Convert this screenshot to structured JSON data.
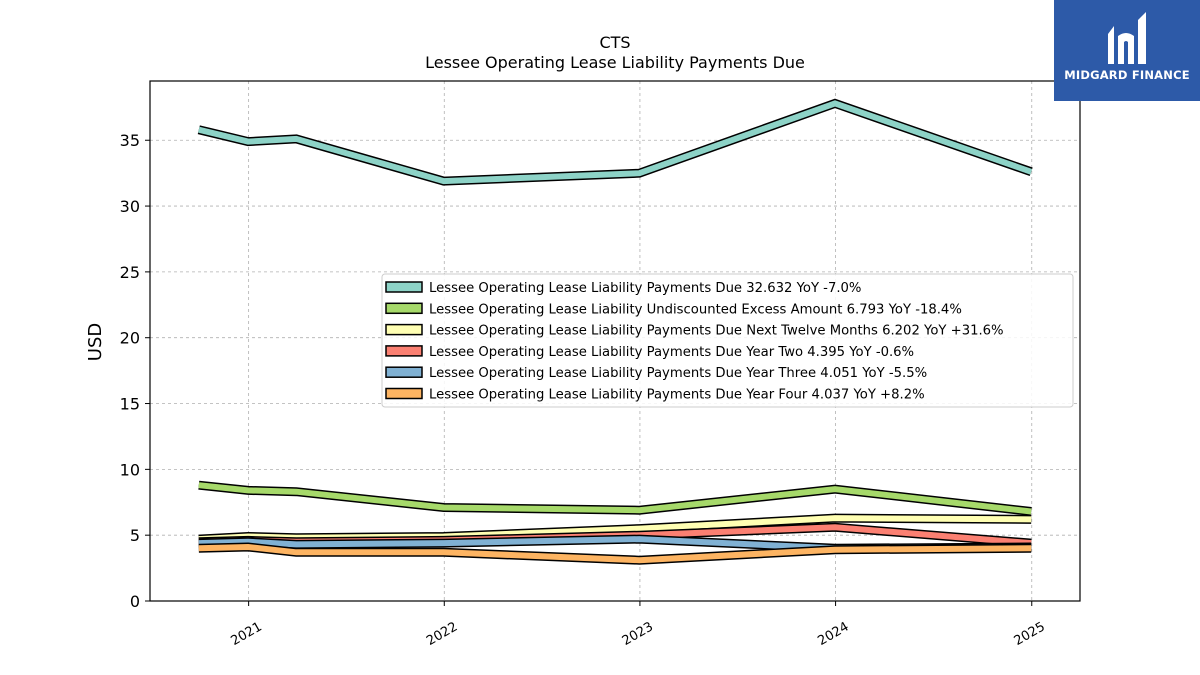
{
  "chart_data": {
    "type": "line",
    "title": "CTS",
    "subtitle": "Lessee Operating Lease Liability Payments Due",
    "ylabel": "USD",
    "xlabel": "",
    "ylim": [
      0,
      39.5
    ],
    "yticks": [
      0,
      5,
      10,
      15,
      20,
      25,
      30,
      35
    ],
    "x": [
      "2020-09-30",
      "2020-12-31",
      "2021-03-31",
      "2021-12-31",
      "2022-12-31",
      "2023-12-31",
      "2024-12-31"
    ],
    "xticks": [
      "2021",
      "2022",
      "2023",
      "2024",
      "2025"
    ],
    "grid": true,
    "legend_position": "center-right",
    "series": [
      {
        "name": "Lessee Operating Lease Liability Payments Due  32.632 YoY -7.0%",
        "color": "#8dd3c7",
        "values": [
          35.8,
          34.9,
          35.1,
          31.9,
          32.5,
          37.8,
          32.6
        ]
      },
      {
        "name": "Lessee Operating Lease Liability Undiscounted Excess Amount  6.793 YoY -18.4%",
        "color": "#a6d96a",
        "values": [
          8.8,
          8.4,
          8.3,
          7.1,
          6.9,
          8.5,
          6.8
        ]
      },
      {
        "name": "Lessee Operating Lease Liability Payments Due Next Twelve Months  6.202 YoY +31.6%",
        "color": "#ffffb3",
        "values": [
          4.7,
          4.9,
          4.8,
          4.9,
          5.5,
          6.3,
          6.2
        ]
      },
      {
        "name": "Lessee Operating Lease Liability Payments Due Year Two  4.395 YoY -0.6%",
        "color": "#fb8072",
        "values": [
          4.5,
          4.6,
          4.5,
          4.6,
          5.0,
          5.6,
          4.4
        ]
      },
      {
        "name": "Lessee Operating Lease Liability Payments Due Year Three  4.051 YoY -5.5%",
        "color": "#80b1d3",
        "values": [
          4.4,
          4.5,
          4.3,
          4.4,
          4.7,
          4.0,
          4.1
        ]
      },
      {
        "name": "Lessee Operating Lease Liability Payments Due Year Four  4.037 YoY +8.2%",
        "color": "#fdb462",
        "values": [
          4.0,
          4.1,
          3.7,
          3.7,
          3.1,
          3.9,
          4.0
        ]
      }
    ]
  },
  "logo": {
    "text": "MIDGARD FINANCE",
    "background": "#2d5aa8"
  }
}
